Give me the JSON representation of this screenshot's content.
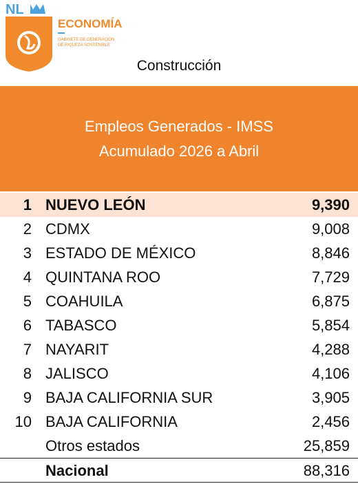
{
  "header": {
    "logo": "NL",
    "brand": "ECONOMÍA",
    "tagline": [
      "GABINETE DE GENERACIÓN",
      "DE RIQUEZA SOSTENIBLE"
    ],
    "title": "Construcción"
  },
  "banner": {
    "lines": [
      "Empleos Generados - IMSS",
      "Acumulado 2026 a Abril"
    ]
  },
  "table": {
    "rows": [
      {
        "rank": "1",
        "name": "NUEVO LEÓN",
        "value": "9,390"
      },
      {
        "rank": "2",
        "name": "CDMX",
        "value": "9,008"
      },
      {
        "rank": "3",
        "name": "ESTADO DE MÉXICO",
        "value": "8,846"
      },
      {
        "rank": "4",
        "name": "QUINTANA ROO",
        "value": "7,729"
      },
      {
        "rank": "5",
        "name": "COAHUILA",
        "value": "6,875"
      },
      {
        "rank": "6",
        "name": "TABASCO",
        "value": "5,854"
      },
      {
        "rank": "7",
        "name": "NAYARIT",
        "value": "4,288"
      },
      {
        "rank": "8",
        "name": "JALISCO",
        "value": "4,106"
      },
      {
        "rank": "9",
        "name": "BAJA CALIFORNIA SUR",
        "value": "3,905"
      },
      {
        "rank": "10",
        "name": "BAJA CALIFORNIA",
        "value": "2,456"
      },
      {
        "name": "Otros estados",
        "value": "25,859"
      }
    ],
    "total": {
      "name": "Nacional",
      "value": "88,316"
    }
  }
}
